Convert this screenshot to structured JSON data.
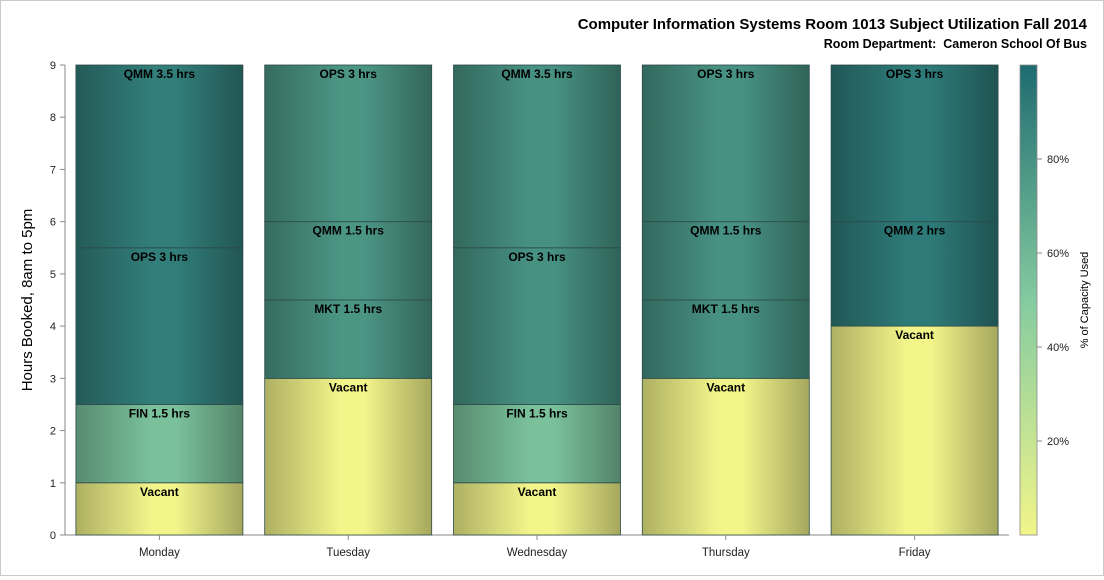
{
  "chart_data": {
    "type": "bar",
    "stacked": true,
    "title": "Computer Information Systems Room 1013 Subject Utilization Fall 2014",
    "subtitle": "Room Department:  Cameron School Of Bus",
    "xlabel": "",
    "ylabel": "Hours Booked, 8am to 5pm",
    "ylim": [
      0,
      9
    ],
    "yticks": [
      0,
      1,
      2,
      3,
      4,
      5,
      6,
      7,
      8,
      9
    ],
    "categories": [
      "Monday",
      "Tuesday",
      "Wednesday",
      "Thursday",
      "Friday"
    ],
    "bars": [
      {
        "day": "Monday",
        "segments": [
          {
            "label": "Vacant",
            "start": 0,
            "end": 1,
            "pct": 0
          },
          {
            "label": "FIN 1.5 hrs",
            "start": 1,
            "end": 2.5,
            "pct": 55
          },
          {
            "label": "OPS 3 hrs",
            "start": 2.5,
            "end": 5.5,
            "pct": 90
          },
          {
            "label": "QMM 3.5 hrs",
            "start": 5.5,
            "end": 9,
            "pct": 90
          }
        ]
      },
      {
        "day": "Tuesday",
        "segments": [
          {
            "label": "Vacant",
            "start": 0,
            "end": 3,
            "pct": 0
          },
          {
            "label": "MKT 1.5 hrs",
            "start": 3,
            "end": 4.5,
            "pct": 78
          },
          {
            "label": "QMM 1.5 hrs",
            "start": 4.5,
            "end": 6,
            "pct": 78
          },
          {
            "label": "OPS 3 hrs",
            "start": 6,
            "end": 9,
            "pct": 78
          }
        ]
      },
      {
        "day": "Wednesday",
        "segments": [
          {
            "label": "Vacant",
            "start": 0,
            "end": 1,
            "pct": 0
          },
          {
            "label": "FIN 1.5 hrs",
            "start": 1,
            "end": 2.5,
            "pct": 55
          },
          {
            "label": "OPS 3 hrs",
            "start": 2.5,
            "end": 5.5,
            "pct": 80
          },
          {
            "label": "QMM 3.5 hrs",
            "start": 5.5,
            "end": 9,
            "pct": 80
          }
        ]
      },
      {
        "day": "Thursday",
        "segments": [
          {
            "label": "Vacant",
            "start": 0,
            "end": 3,
            "pct": 0
          },
          {
            "label": "MKT 1.5 hrs",
            "start": 3,
            "end": 4.5,
            "pct": 80
          },
          {
            "label": "QMM 1.5 hrs",
            "start": 4.5,
            "end": 6,
            "pct": 80
          },
          {
            "label": "OPS 3 hrs",
            "start": 6,
            "end": 9,
            "pct": 80
          }
        ]
      },
      {
        "day": "Friday",
        "segments": [
          {
            "label": "Vacant",
            "start": 0,
            "end": 4,
            "pct": 0
          },
          {
            "label": "QMM 2 hrs",
            "start": 4,
            "end": 6,
            "pct": 92
          },
          {
            "label": "OPS 3 hrs",
            "start": 6,
            "end": 9,
            "pct": 92
          }
        ]
      }
    ],
    "legend": {
      "title": "% of Capacity Used",
      "position": "right",
      "type": "color-gradient",
      "range": [
        0,
        100
      ],
      "ticks": [
        "20%",
        "40%",
        "60%",
        "80%"
      ],
      "tick_values": [
        20,
        40,
        60,
        80
      ],
      "colors": [
        "#f2f58a",
        "#84cba0",
        "#1e6b70"
      ]
    }
  }
}
